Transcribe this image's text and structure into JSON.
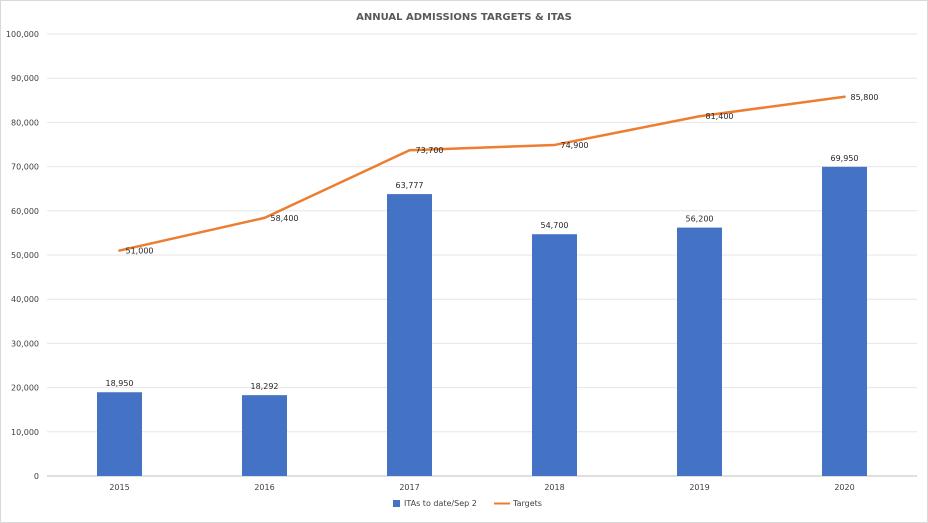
{
  "colors": {
    "bar": "#4472C4",
    "line": "#ED7D31",
    "grid": "#e6e6e6",
    "axis": "#bfbfbf"
  },
  "chart_data": {
    "type": "bar",
    "title": "ANNUAL ADMISSIONS TARGETS & ITAS",
    "xlabel": "",
    "ylabel": "",
    "categories": [
      "2015",
      "2016",
      "2017",
      "2018",
      "2019",
      "2020"
    ],
    "ylim": [
      0,
      100000
    ],
    "y_ticks": [
      "0",
      "10,000",
      "20,000",
      "30,000",
      "40,000",
      "50,000",
      "60,000",
      "70,000",
      "80,000",
      "90,000",
      "100,000"
    ],
    "grid": true,
    "legend_position": "bottom",
    "series": [
      {
        "name": "ITAs to date/Sep 2",
        "type": "bar",
        "values": [
          18950,
          18292,
          63777,
          54700,
          56200,
          69950
        ],
        "labels": [
          "18,950",
          "18,292",
          "63,777",
          "54,700",
          "56,200",
          "69,950"
        ]
      },
      {
        "name": "Targets",
        "type": "line",
        "values": [
          51000,
          58400,
          73700,
          74900,
          81400,
          85800
        ],
        "labels": [
          "51,000",
          "58,400",
          "73,700",
          "74,900",
          "81,400",
          "85,800"
        ]
      }
    ]
  }
}
